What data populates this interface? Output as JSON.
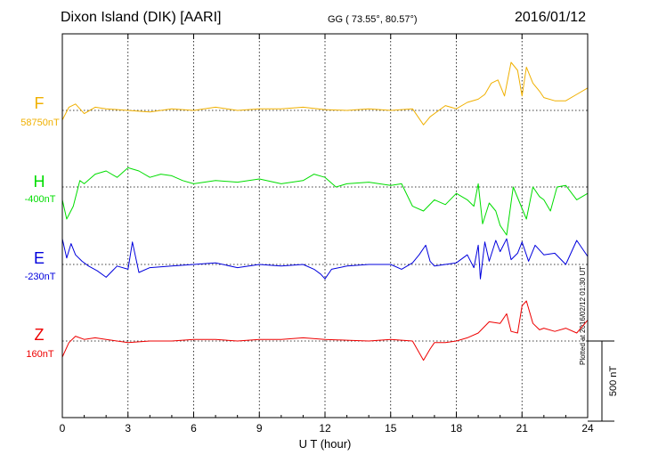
{
  "header": {
    "station": "Dixon Island (DIK)  [AARI]",
    "coords": "GG ( 73.55°,  80.57°)",
    "date": "2016/01/12"
  },
  "footer": {
    "plotted": "Plotted at 2016/02/12 01:30 UT"
  },
  "colors": {
    "F": "#f0b000",
    "H": "#00dd00",
    "E": "#0000dd",
    "Z": "#ee0000"
  },
  "chart_data": {
    "type": "line",
    "xlabel": "U T (hour)",
    "xlim": [
      0,
      24
    ],
    "xticks": [
      0,
      3,
      6,
      9,
      12,
      15,
      18,
      21,
      24
    ],
    "xtick_labels": [
      "0",
      "3",
      "6",
      "9",
      "12",
      "15",
      "18",
      "21",
      "24"
    ],
    "scale_bar": {
      "label": "500 nT",
      "value_nT": 500
    },
    "units": "nT",
    "series": [
      {
        "name": "F",
        "baseline_label": "58750nT",
        "baseline_nT": 58750,
        "x": [
          0,
          0.3,
          0.6,
          1.0,
          1.5,
          2.0,
          3.0,
          4.0,
          5.0,
          6.0,
          7.0,
          8.0,
          9.0,
          10.0,
          11.0,
          12.0,
          13.0,
          14.0,
          15.0,
          16.0,
          16.5,
          16.8,
          17.2,
          17.5,
          18.0,
          18.5,
          19.0,
          19.3,
          19.6,
          19.9,
          20.2,
          20.5,
          20.8,
          21.0,
          21.2,
          21.5,
          21.8,
          22.0,
          22.5,
          23.0,
          23.5,
          24.0
        ],
        "values": [
          -60,
          20,
          40,
          -20,
          20,
          10,
          0,
          -10,
          10,
          0,
          20,
          0,
          10,
          10,
          20,
          5,
          0,
          10,
          0,
          10,
          -90,
          -40,
          0,
          30,
          10,
          50,
          70,
          100,
          170,
          190,
          90,
          300,
          250,
          90,
          270,
          170,
          120,
          80,
          60,
          60,
          100,
          140
        ]
      },
      {
        "name": "H",
        "baseline_label": "-400nT",
        "baseline_nT": -400,
        "x": [
          0,
          0.2,
          0.5,
          0.8,
          1.0,
          1.5,
          2.0,
          2.5,
          3.0,
          3.5,
          4.0,
          4.5,
          5.0,
          5.5,
          6.0,
          7.0,
          8.0,
          9.0,
          10.0,
          11.0,
          11.5,
          12.0,
          12.5,
          13.0,
          14.0,
          15.0,
          15.5,
          16.0,
          16.5,
          17.0,
          17.5,
          18.0,
          18.5,
          18.8,
          19.0,
          19.2,
          19.5,
          19.8,
          20.0,
          20.3,
          20.6,
          20.9,
          21.2,
          21.5,
          21.8,
          22.0,
          22.3,
          22.6,
          23.0,
          23.5,
          24.0
        ],
        "values": [
          -80,
          -200,
          -120,
          40,
          20,
          80,
          100,
          60,
          120,
          100,
          60,
          80,
          70,
          40,
          20,
          40,
          30,
          50,
          20,
          40,
          80,
          60,
          0,
          20,
          30,
          10,
          20,
          -120,
          -150,
          -80,
          -110,
          -40,
          -80,
          -120,
          20,
          -230,
          -100,
          -150,
          -240,
          -300,
          0,
          -100,
          -200,
          0,
          -60,
          -80,
          -150,
          0,
          10,
          -80,
          -40
        ]
      },
      {
        "name": "E",
        "baseline_label": "-230nT",
        "baseline_nT": -230,
        "x": [
          0,
          0.2,
          0.4,
          0.6,
          0.9,
          1.2,
          1.6,
          2.0,
          2.5,
          3.0,
          3.2,
          3.5,
          4.0,
          5.0,
          6.0,
          7.0,
          8.0,
          9.0,
          10.0,
          11.0,
          11.5,
          11.8,
          12.0,
          12.3,
          13.0,
          14.0,
          15.0,
          15.5,
          16.0,
          16.3,
          16.6,
          16.8,
          17.0,
          17.5,
          18.0,
          18.5,
          18.8,
          19.0,
          19.1,
          19.3,
          19.5,
          19.8,
          20.0,
          20.3,
          20.5,
          20.8,
          21.0,
          21.3,
          21.6,
          22.0,
          22.5,
          23.0,
          23.5,
          24.0
        ],
        "values": [
          160,
          40,
          130,
          60,
          20,
          -10,
          -40,
          -80,
          -10,
          -30,
          140,
          -50,
          -20,
          -10,
          0,
          10,
          -20,
          0,
          -10,
          0,
          -30,
          -60,
          -90,
          -30,
          -10,
          0,
          0,
          -30,
          10,
          60,
          120,
          20,
          -10,
          0,
          10,
          60,
          -20,
          120,
          -90,
          140,
          20,
          150,
          80,
          160,
          30,
          70,
          140,
          20,
          120,
          60,
          70,
          0,
          150,
          50
        ]
      },
      {
        "name": "Z",
        "baseline_label": "160nT",
        "baseline_nT": 160,
        "x": [
          0,
          0.3,
          0.6,
          1.0,
          1.5,
          2.0,
          3.0,
          4.0,
          5.0,
          6.0,
          7.0,
          8.0,
          9.0,
          10.0,
          11.0,
          12.0,
          13.0,
          14.0,
          15.0,
          16.0,
          16.5,
          16.8,
          17.0,
          17.5,
          18.0,
          18.5,
          19.0,
          19.5,
          20.0,
          20.3,
          20.5,
          20.8,
          21.0,
          21.2,
          21.5,
          21.8,
          22.0,
          22.5,
          23.0,
          23.5,
          24.0
        ],
        "values": [
          -100,
          -10,
          30,
          10,
          20,
          10,
          -10,
          0,
          0,
          10,
          10,
          0,
          10,
          10,
          20,
          10,
          5,
          0,
          10,
          0,
          -120,
          -50,
          -10,
          -10,
          0,
          20,
          50,
          120,
          110,
          170,
          60,
          50,
          220,
          250,
          110,
          70,
          80,
          60,
          80,
          50,
          130
        ]
      }
    ]
  }
}
